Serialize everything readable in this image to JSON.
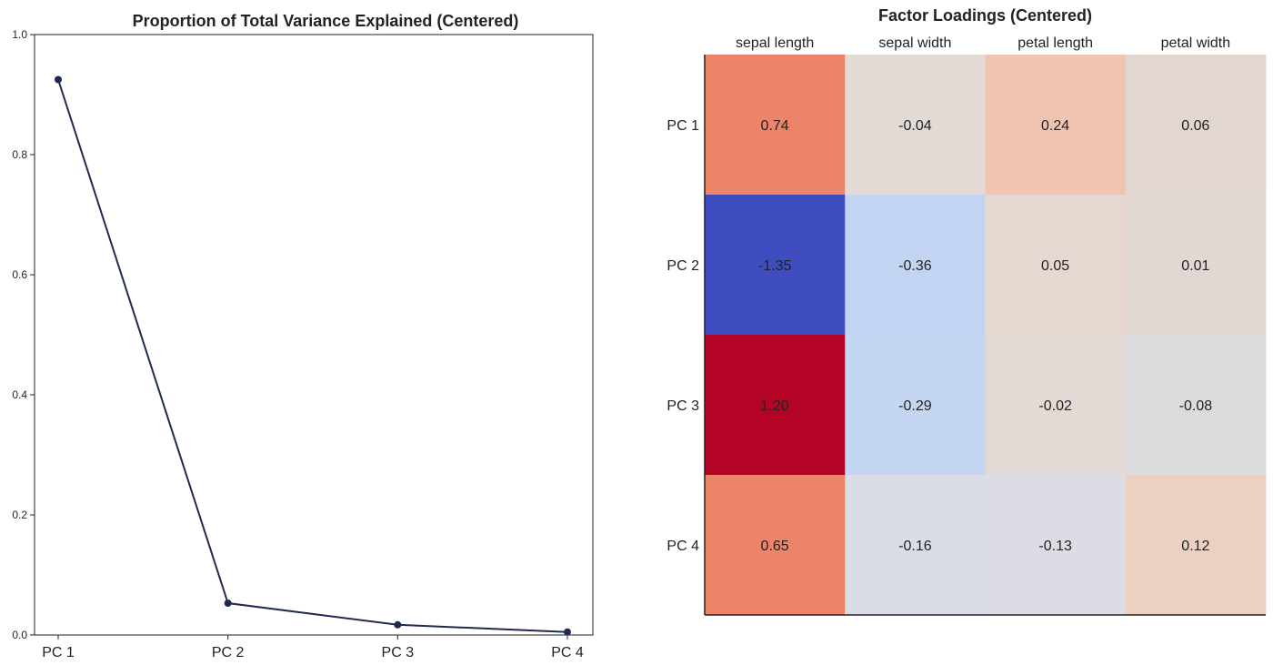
{
  "chart_data": [
    {
      "type": "line",
      "title": "Proportion of Total Variance Explained (Centered)",
      "categories": [
        "PC 1",
        "PC 2",
        "PC 3",
        "PC 4"
      ],
      "values": [
        0.925,
        0.053,
        0.017,
        0.005
      ],
      "ylim": [
        0,
        1.0
      ],
      "yticks": [
        "0.0",
        "0.2",
        "0.4",
        "0.6",
        "0.8",
        "1.0"
      ],
      "xlabel": "",
      "ylabel": "",
      "grid": false,
      "line_color": "#1f2a50"
    },
    {
      "type": "heatmap",
      "title": "Factor Loadings (Centered)",
      "columns": [
        "sepal length",
        "sepal width",
        "petal length",
        "petal width"
      ],
      "rows": [
        "PC 1",
        "PC 2",
        "PC 3",
        "PC 4"
      ],
      "values": [
        [
          0.74,
          -0.04,
          0.24,
          0.06
        ],
        [
          -1.35,
          -0.36,
          0.05,
          0.01
        ],
        [
          1.2,
          -0.29,
          -0.02,
          -0.08
        ],
        [
          0.65,
          -0.16,
          -0.13,
          0.12
        ]
      ],
      "labels": [
        [
          "0.74",
          "-0.04",
          "0.24",
          "0.06"
        ],
        [
          "-1.35",
          "-0.36",
          "0.05",
          "0.01"
        ],
        [
          "1.20",
          "-0.29",
          "-0.02",
          "-0.08"
        ],
        [
          "0.65",
          "-0.16",
          "-0.13",
          "0.12"
        ]
      ],
      "colormap": "coolwarm",
      "vlim": [
        -1.35,
        1.35
      ],
      "colors": [
        [
          "#ec8469",
          "#e2dad5",
          "#efc5b2",
          "#e2d6d0"
        ],
        [
          "#3f4dc0",
          "#c2d4f2",
          "#e6d8d0",
          "#e2d8d3"
        ],
        [
          "#b40426",
          "#c5d6f2",
          "#e3dad5",
          "#dcdbdd"
        ],
        [
          "#ec8469",
          "#dadce6",
          "#dcdce4",
          "#ecd0c1"
        ]
      ]
    }
  ]
}
